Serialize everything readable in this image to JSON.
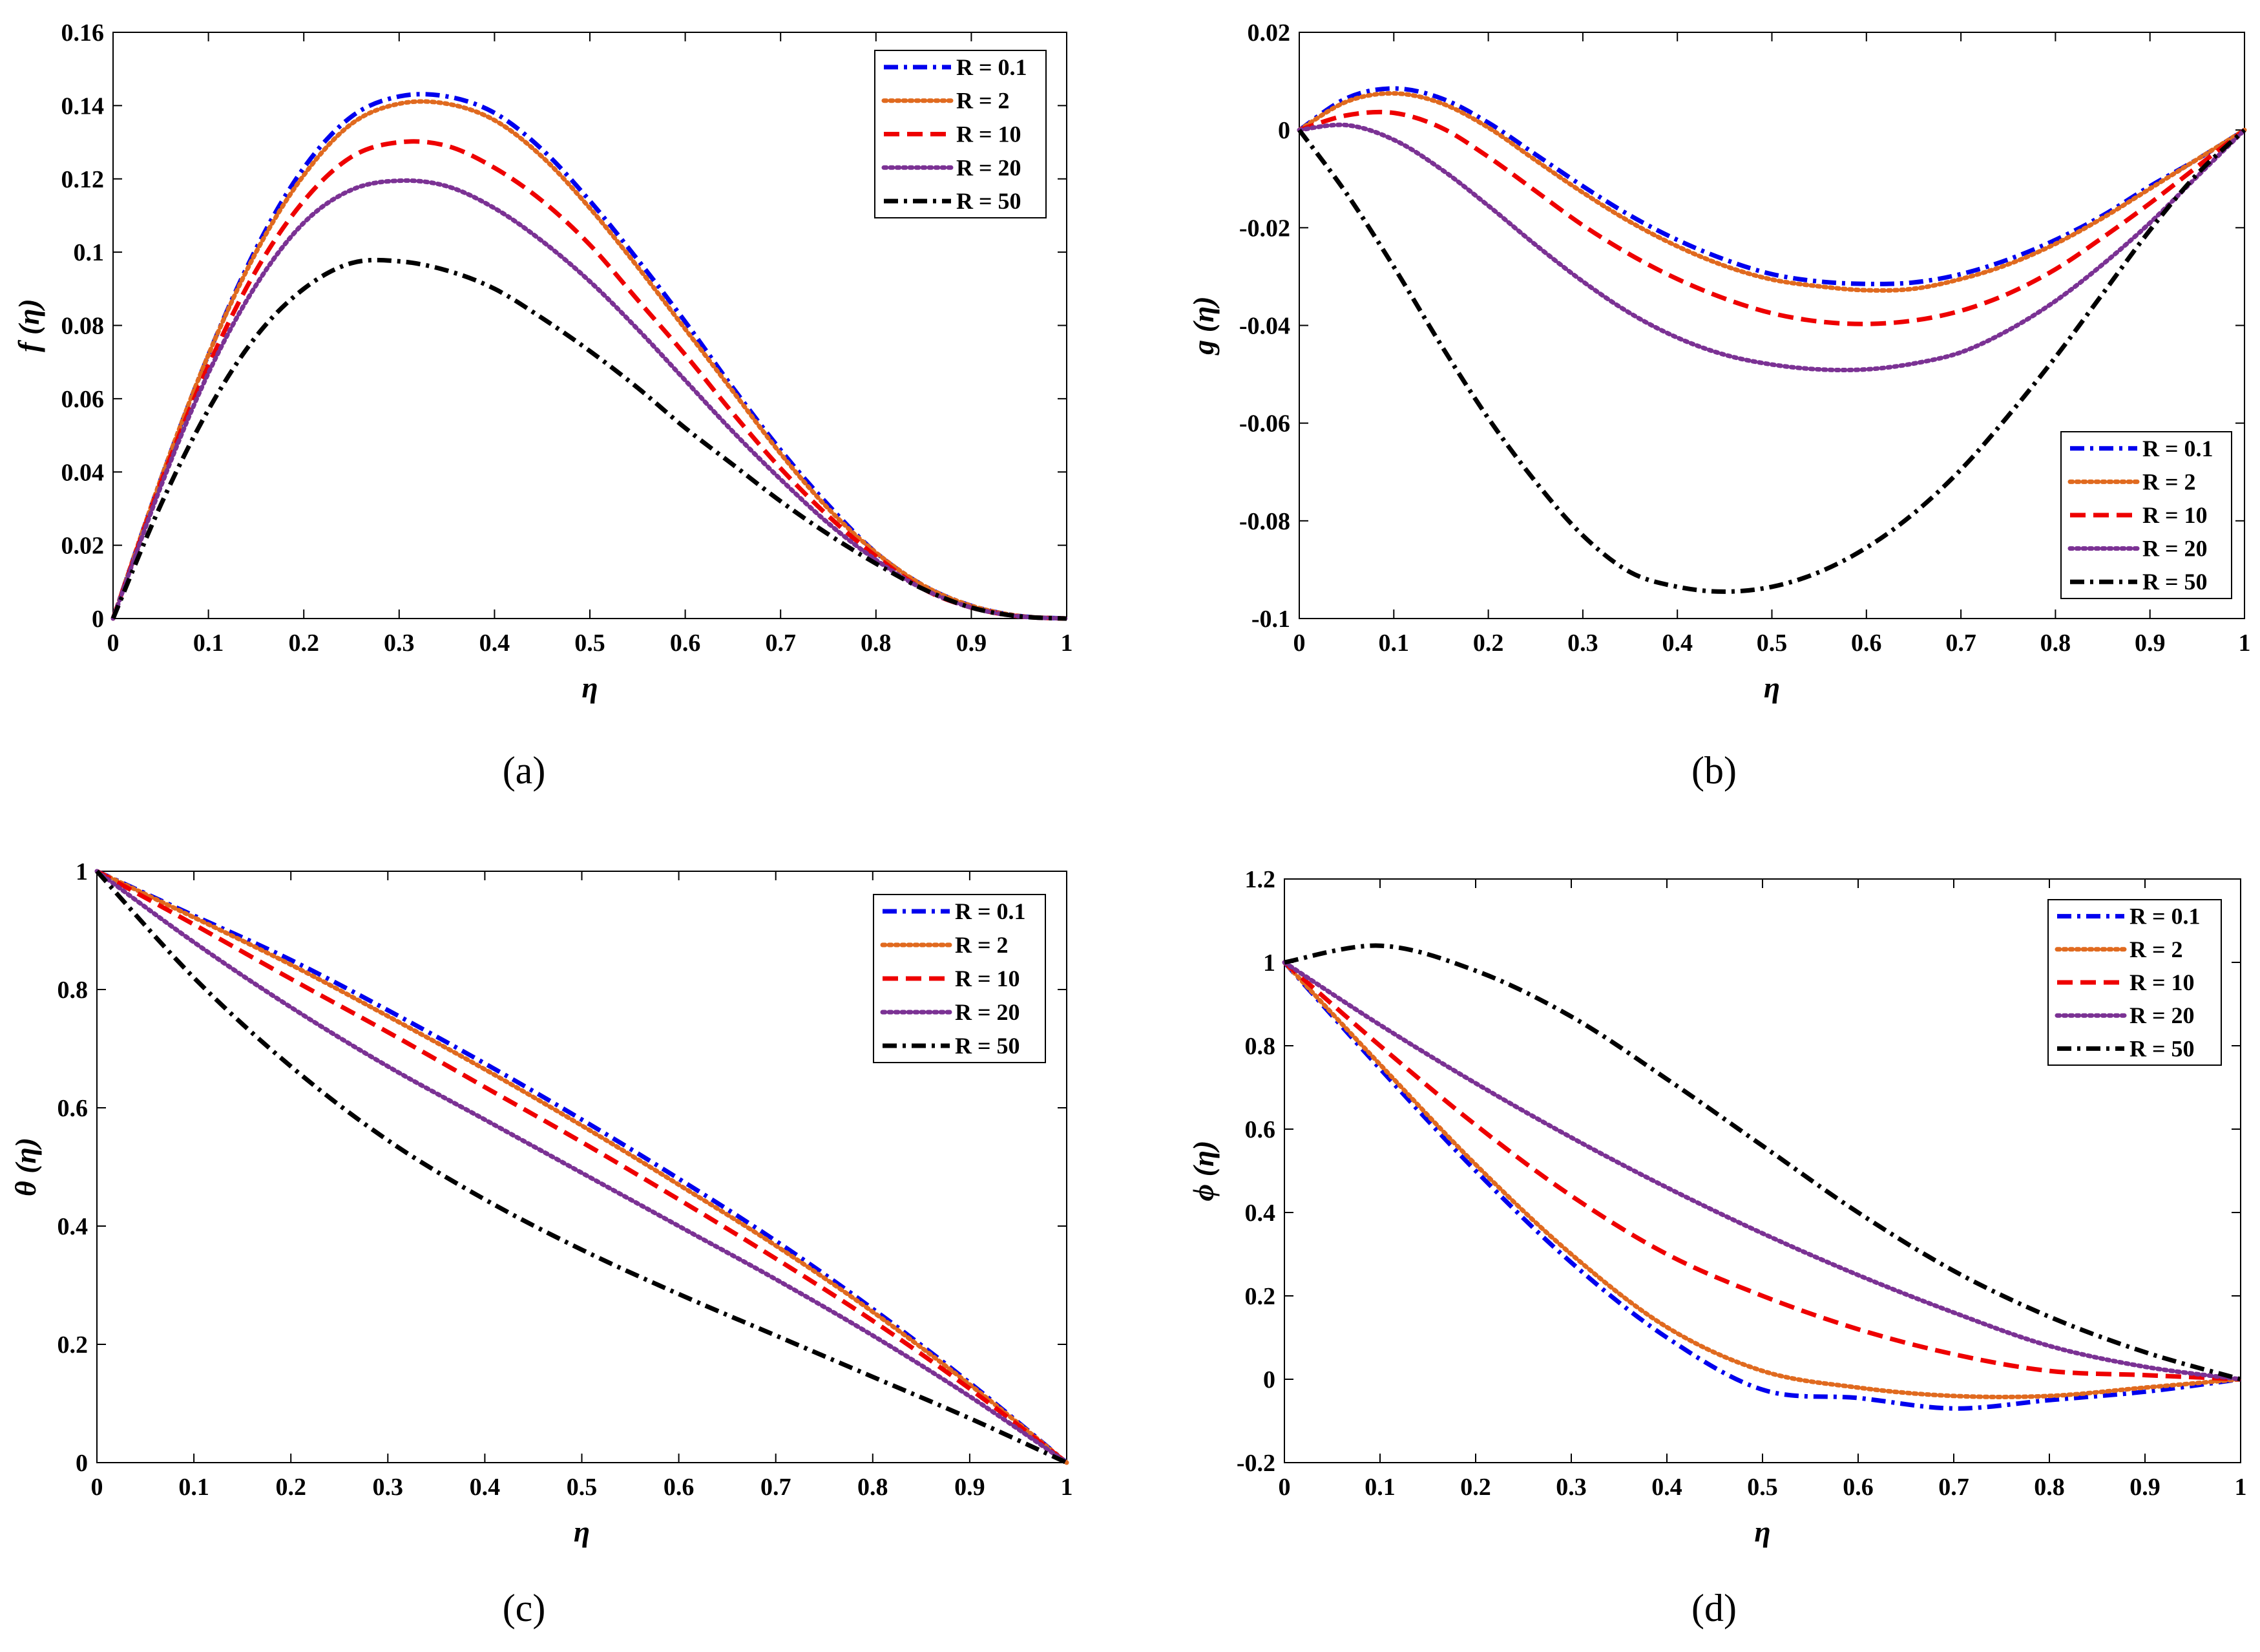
{
  "figure": {
    "captions": [
      "(a)",
      "(b)",
      "(c)",
      "(d)"
    ]
  },
  "chart_data": [
    {
      "type": "line",
      "panel": "a",
      "xlabel": "η",
      "ylabel": "f (η)",
      "xlim": [
        0,
        1
      ],
      "ylim": [
        0,
        0.16
      ],
      "xticks": [
        "0",
        "0.1",
        "0.2",
        "0.3",
        "0.4",
        "0.5",
        "0.6",
        "0.7",
        "0.8",
        "0.9",
        "1"
      ],
      "yticks": [
        "0",
        "0.02",
        "0.04",
        "0.06",
        "0.08",
        "0.1",
        "0.12",
        "0.14",
        "0.16"
      ],
      "legend_position": "top-right",
      "x": [
        0,
        0.05,
        0.1,
        0.15,
        0.2,
        0.25,
        0.3,
        0.35,
        0.4,
        0.45,
        0.5,
        0.55,
        0.6,
        0.65,
        0.7,
        0.75,
        0.8,
        0.85,
        0.9,
        0.95,
        1
      ],
      "series": [
        {
          "name": "R = 0.1",
          "color": "#0000ee",
          "style": "dashdot",
          "values": [
            0,
            0.038,
            0.072,
            0.101,
            0.123,
            0.137,
            0.1425,
            0.1425,
            0.138,
            0.128,
            0.114,
            0.098,
            0.081,
            0.063,
            0.046,
            0.031,
            0.018,
            0.009,
            0.0035,
            0.0007,
            0
          ]
        },
        {
          "name": "R = 2",
          "color": "#e06a1f",
          "style": "dotted",
          "values": [
            0,
            0.038,
            0.072,
            0.1,
            0.121,
            0.135,
            0.1405,
            0.1405,
            0.136,
            0.126,
            0.112,
            0.096,
            0.079,
            0.062,
            0.045,
            0.03,
            0.018,
            0.009,
            0.0035,
            0.0007,
            0
          ]
        },
        {
          "name": "R = 10",
          "color": "#ee0000",
          "style": "dashed",
          "values": [
            0,
            0.037,
            0.069,
            0.095,
            0.114,
            0.126,
            0.13,
            0.129,
            0.123,
            0.114,
            0.102,
            0.087,
            0.072,
            0.056,
            0.041,
            0.028,
            0.017,
            0.008,
            0.003,
            0.0006,
            0
          ]
        },
        {
          "name": "R = 20",
          "color": "#7b3294",
          "style": "dotted",
          "values": [
            0,
            0.036,
            0.067,
            0.091,
            0.108,
            0.117,
            0.1195,
            0.118,
            0.112,
            0.103,
            0.092,
            0.079,
            0.065,
            0.051,
            0.038,
            0.026,
            0.016,
            0.008,
            0.003,
            0.0006,
            0
          ]
        },
        {
          "name": "R = 50",
          "color": "#000000",
          "style": "dashdot",
          "values": [
            0,
            0.031,
            0.057,
            0.077,
            0.09,
            0.097,
            0.0975,
            0.095,
            0.09,
            0.082,
            0.073,
            0.063,
            0.052,
            0.042,
            0.032,
            0.023,
            0.015,
            0.008,
            0.003,
            0.0006,
            0
          ]
        }
      ]
    },
    {
      "type": "line",
      "panel": "b",
      "xlabel": "η",
      "ylabel": "g (η)",
      "xlim": [
        0,
        1
      ],
      "ylim": [
        -0.1,
        0.02
      ],
      "xticks": [
        "0",
        "0.1",
        "0.2",
        "0.3",
        "0.4",
        "0.5",
        "0.6",
        "0.7",
        "0.8",
        "0.9",
        "1"
      ],
      "yticks": [
        "-0.1",
        "-0.08",
        "-0.06",
        "-0.04",
        "-0.02",
        "0",
        "0.02"
      ],
      "legend_position": "bottom-right",
      "x": [
        0,
        0.05,
        0.1,
        0.15,
        0.2,
        0.25,
        0.3,
        0.35,
        0.4,
        0.45,
        0.5,
        0.55,
        0.6,
        0.65,
        0.7,
        0.75,
        0.8,
        0.85,
        0.9,
        0.95,
        1
      ],
      "series": [
        {
          "name": "R = 0.1",
          "color": "#0000ee",
          "style": "dashdot",
          "values": [
            0,
            0.0065,
            0.0085,
            0.0065,
            0.0015,
            -0.005,
            -0.0115,
            -0.0175,
            -0.0225,
            -0.0265,
            -0.0295,
            -0.031,
            -0.0315,
            -0.0312,
            -0.0295,
            -0.0265,
            -0.0225,
            -0.0175,
            -0.0115,
            -0.006,
            0
          ]
        },
        {
          "name": "R = 2",
          "color": "#e06a1f",
          "style": "dotted",
          "values": [
            0,
            0.0058,
            0.0075,
            0.0055,
            0.0005,
            -0.0062,
            -0.0128,
            -0.0188,
            -0.0238,
            -0.0278,
            -0.0306,
            -0.032,
            -0.0328,
            -0.0325,
            -0.0305,
            -0.0275,
            -0.0233,
            -0.018,
            -0.012,
            -0.006,
            0
          ]
        },
        {
          "name": "R = 10",
          "color": "#ee0000",
          "style": "dashed",
          "values": [
            0,
            0.003,
            0.0035,
            0.0005,
            -0.0055,
            -0.0125,
            -0.0195,
            -0.0255,
            -0.0305,
            -0.0345,
            -0.0375,
            -0.0392,
            -0.0397,
            -0.039,
            -0.037,
            -0.0335,
            -0.0285,
            -0.022,
            -0.015,
            -0.0075,
            0
          ]
        },
        {
          "name": "R = 20",
          "color": "#7b3294",
          "style": "dotted",
          "values": [
            0,
            0.001,
            -0.002,
            -0.008,
            -0.0155,
            -0.0235,
            -0.031,
            -0.0375,
            -0.0425,
            -0.046,
            -0.048,
            -0.049,
            -0.049,
            -0.0478,
            -0.0455,
            -0.041,
            -0.035,
            -0.0275,
            -0.019,
            -0.0095,
            0
          ]
        },
        {
          "name": "R = 50",
          "color": "#000000",
          "style": "dashdot",
          "values": [
            0,
            -0.013,
            -0.028,
            -0.044,
            -0.059,
            -0.072,
            -0.083,
            -0.0905,
            -0.0935,
            -0.0945,
            -0.0935,
            -0.0905,
            -0.0855,
            -0.0785,
            -0.0695,
            -0.0585,
            -0.0465,
            -0.0335,
            -0.0205,
            -0.009,
            0
          ]
        }
      ]
    },
    {
      "type": "line",
      "panel": "c",
      "xlabel": "η",
      "ylabel": "θ (η)",
      "xlim": [
        0,
        1
      ],
      "ylim": [
        0,
        1
      ],
      "xticks": [
        "0",
        "0.1",
        "0.2",
        "0.3",
        "0.4",
        "0.5",
        "0.6",
        "0.7",
        "0.8",
        "0.9",
        "1"
      ],
      "yticks": [
        "0",
        "0.2",
        "0.4",
        "0.6",
        "0.8",
        "1"
      ],
      "legend_position": "top-right",
      "x": [
        0,
        0.1,
        0.2,
        0.3,
        0.4,
        0.5,
        0.6,
        0.7,
        0.8,
        0.9,
        1
      ],
      "series": [
        {
          "name": "R = 0.1",
          "color": "#0000ee",
          "style": "dashdot",
          "values": [
            1,
            0.925,
            0.85,
            0.765,
            0.675,
            0.58,
            0.48,
            0.375,
            0.26,
            0.135,
            0
          ]
        },
        {
          "name": "R = 2",
          "color": "#e06a1f",
          "style": "dotted",
          "values": [
            1,
            0.922,
            0.842,
            0.755,
            0.665,
            0.57,
            0.47,
            0.367,
            0.255,
            0.132,
            0
          ]
        },
        {
          "name": "R = 10",
          "color": "#ee0000",
          "style": "dashed",
          "values": [
            1,
            0.91,
            0.818,
            0.728,
            0.635,
            0.542,
            0.445,
            0.345,
            0.24,
            0.125,
            0
          ]
        },
        {
          "name": "R = 20",
          "color": "#7b3294",
          "style": "dotted",
          "values": [
            1,
            0.88,
            0.77,
            0.67,
            0.58,
            0.49,
            0.4,
            0.31,
            0.215,
            0.112,
            0
          ]
        },
        {
          "name": "R = 50",
          "color": "#000000",
          "style": "dashdot",
          "values": [
            1,
            0.82,
            0.67,
            0.545,
            0.445,
            0.36,
            0.285,
            0.215,
            0.145,
            0.075,
            0
          ]
        }
      ]
    },
    {
      "type": "line",
      "panel": "d",
      "xlabel": "η",
      "ylabel": "ϕ (η)",
      "xlim": [
        0,
        1
      ],
      "ylim": [
        -0.2,
        1.2
      ],
      "xticks": [
        "0",
        "0.1",
        "0.2",
        "0.3",
        "0.4",
        "0.5",
        "0.6",
        "0.7",
        "0.8",
        "0.9",
        "1"
      ],
      "yticks": [
        "-0.2",
        "0",
        "0.2",
        "0.4",
        "0.6",
        "0.8",
        "1",
        "1.2"
      ],
      "legend_position": "top-right",
      "x": [
        0,
        0.1,
        0.2,
        0.3,
        0.4,
        0.5,
        0.6,
        0.7,
        0.8,
        0.9,
        1
      ],
      "series": [
        {
          "name": "R = 0.1",
          "color": "#0000ee",
          "style": "dashdot",
          "values": [
            1,
            0.745,
            0.5,
            0.28,
            0.1,
            -0.025,
            -0.045,
            -0.07,
            -0.05,
            -0.03,
            0
          ]
        },
        {
          "name": "R = 2",
          "color": "#e06a1f",
          "style": "dotted",
          "values": [
            1,
            0.755,
            0.515,
            0.3,
            0.125,
            0.02,
            -0.02,
            -0.04,
            -0.04,
            -0.02,
            0
          ]
        },
        {
          "name": "R = 10",
          "color": "#ee0000",
          "style": "dashed",
          "values": [
            1,
            0.8,
            0.61,
            0.44,
            0.3,
            0.2,
            0.12,
            0.06,
            0.02,
            0.01,
            0
          ]
        },
        {
          "name": "R = 20",
          "color": "#7b3294",
          "style": "dotted",
          "values": [
            1,
            0.85,
            0.71,
            0.58,
            0.46,
            0.35,
            0.25,
            0.16,
            0.08,
            0.03,
            0
          ]
        },
        {
          "name": "R = 50",
          "color": "#000000",
          "style": "dashdot",
          "values": [
            1,
            1.04,
            0.98,
            0.87,
            0.72,
            0.56,
            0.4,
            0.26,
            0.15,
            0.065,
            0
          ]
        }
      ]
    }
  ]
}
